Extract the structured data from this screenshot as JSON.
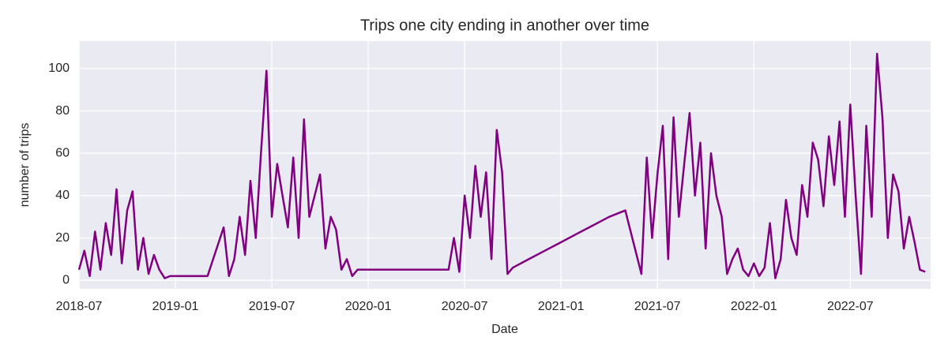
{
  "chart_data": {
    "type": "line",
    "title": "Trips one city ending in another over time",
    "x_label": "Date",
    "y_label": "number of trips",
    "x": [
      "2018-07",
      "2018-07",
      "2018-07",
      "2018-08",
      "2018-08",
      "2018-08",
      "2018-09",
      "2018-09",
      "2018-09",
      "2018-10",
      "2018-10",
      "2018-10",
      "2018-11",
      "2018-11",
      "2018-11",
      "2018-12",
      "2018-12",
      "2018-12",
      "2019-01",
      "2019-02",
      "2019-03",
      "2019-04",
      "2019-04",
      "2019-04",
      "2019-05",
      "2019-05",
      "2019-05",
      "2019-06",
      "2019-06",
      "2019-06",
      "2019-07",
      "2019-07",
      "2019-07",
      "2019-08",
      "2019-08",
      "2019-08",
      "2019-09",
      "2019-09",
      "2019-09",
      "2019-10",
      "2019-10",
      "2019-10",
      "2019-11",
      "2019-11",
      "2019-11",
      "2019-12",
      "2019-12",
      "2019-12",
      "2020-01",
      "2020-02",
      "2020-03",
      "2020-04",
      "2020-05",
      "2020-06",
      "2020-06",
      "2020-06",
      "2020-07",
      "2020-07",
      "2020-07",
      "2020-08",
      "2020-08",
      "2020-08",
      "2020-09",
      "2020-09",
      "2020-09",
      "2020-10",
      "2020-11",
      "2020-12",
      "2021-01",
      "2021-02",
      "2021-03",
      "2021-04",
      "2021-05",
      "2021-06",
      "2021-06",
      "2021-06",
      "2021-07",
      "2021-07",
      "2021-07",
      "2021-08",
      "2021-08",
      "2021-08",
      "2021-09",
      "2021-09",
      "2021-09",
      "2021-10",
      "2021-10",
      "2021-10",
      "2021-11",
      "2021-11",
      "2021-11",
      "2021-12",
      "2021-12",
      "2021-12",
      "2022-01",
      "2022-01",
      "2022-01",
      "2022-02",
      "2022-02",
      "2022-02",
      "2022-03",
      "2022-03",
      "2022-03",
      "2022-04",
      "2022-04",
      "2022-04",
      "2022-05",
      "2022-05",
      "2022-05",
      "2022-06",
      "2022-06",
      "2022-06",
      "2022-07",
      "2022-07",
      "2022-07",
      "2022-08",
      "2022-08",
      "2022-08",
      "2022-09",
      "2022-09",
      "2022-09",
      "2022-10",
      "2022-10",
      "2022-10",
      "2022-11",
      "2022-11",
      "2022-11"
    ],
    "series": [
      {
        "name": "trips",
        "color": "#800080",
        "values": [
          5,
          14,
          2,
          23,
          5,
          27,
          12,
          43,
          8,
          33,
          42,
          5,
          20,
          3,
          12,
          5,
          1,
          2,
          2,
          2,
          2,
          25,
          2,
          10,
          30,
          12,
          47,
          20,
          61,
          99,
          30,
          55,
          40,
          25,
          58,
          20,
          76,
          30,
          40,
          50,
          15,
          30,
          24,
          5,
          10,
          2,
          5,
          5,
          5,
          5,
          5,
          5,
          5,
          5,
          20,
          4,
          40,
          20,
          54,
          30,
          51,
          10,
          71,
          51,
          3,
          6,
          10,
          14,
          18,
          22,
          26,
          30,
          33,
          3,
          58,
          20,
          50,
          73,
          10,
          77,
          30,
          55,
          79,
          40,
          65,
          15,
          60,
          40,
          30,
          3,
          10,
          15,
          5,
          2,
          8,
          2,
          6,
          27,
          1,
          10,
          38,
          20,
          12,
          45,
          30,
          65,
          57,
          35,
          68,
          45,
          75,
          30,
          83,
          40,
          3,
          73,
          30,
          107,
          77,
          20,
          50,
          42,
          15,
          30,
          18,
          5,
          4
        ]
      }
    ],
    "xlim": [
      "2018-07",
      "2022-12"
    ],
    "xticks": [
      "2018-07",
      "2019-01",
      "2019-07",
      "2020-01",
      "2020-07",
      "2021-01",
      "2021-07",
      "2022-01",
      "2022-07"
    ],
    "ylim": [
      -4,
      113
    ],
    "yticks": [
      0,
      20,
      40,
      60,
      80,
      100
    ],
    "grid": true
  }
}
